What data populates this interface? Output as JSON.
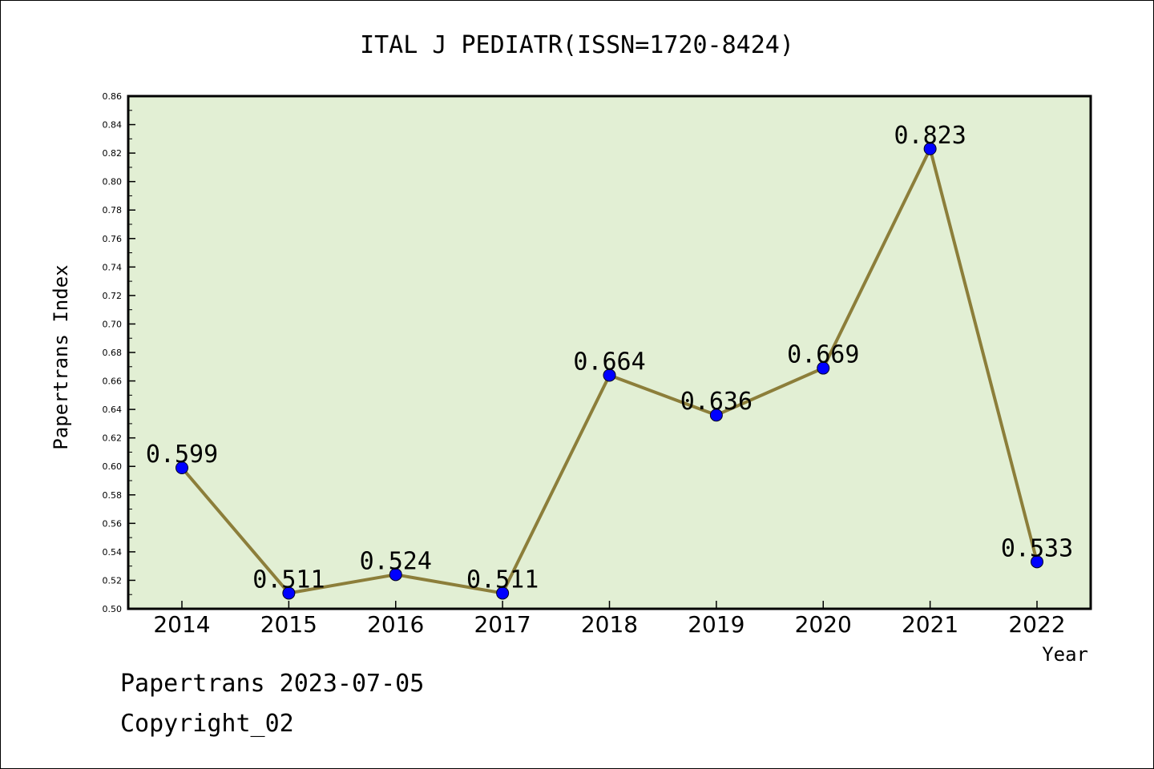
{
  "chart_data": {
    "type": "line",
    "title": "ITAL J PEDIATR(ISSN=1720-8424)",
    "xlabel": "Year",
    "ylabel": "Papertrans Index",
    "categories": [
      "2014",
      "2015",
      "2016",
      "2017",
      "2018",
      "2019",
      "2020",
      "2021",
      "2022"
    ],
    "series": [
      {
        "values": [
          0.599,
          0.511,
          0.524,
          0.511,
          0.664,
          0.636,
          0.669,
          0.823,
          0.533
        ]
      }
    ],
    "data_labels": [
      "0.599",
      "0.511",
      "0.524",
      "0.511",
      "0.664",
      "0.636",
      "0.669",
      "0.823",
      "0.533"
    ],
    "ylim": [
      0.5,
      0.86
    ],
    "y_ticks": [
      "0.50",
      "0.52",
      "0.54",
      "0.56",
      "0.58",
      "0.60",
      "0.62",
      "0.64",
      "0.66",
      "0.68",
      "0.70",
      "0.72",
      "0.74",
      "0.76",
      "0.78",
      "0.80",
      "0.82",
      "0.84",
      "0.86"
    ],
    "grid": false,
    "legend": "none",
    "colors": {
      "plot_background": "#e2efd4",
      "line": "#8c7e3a",
      "marker": "#0000ff"
    }
  },
  "footer": {
    "date_line": "Papertrans 2023-07-05",
    "copyright": "Copyright_02"
  }
}
